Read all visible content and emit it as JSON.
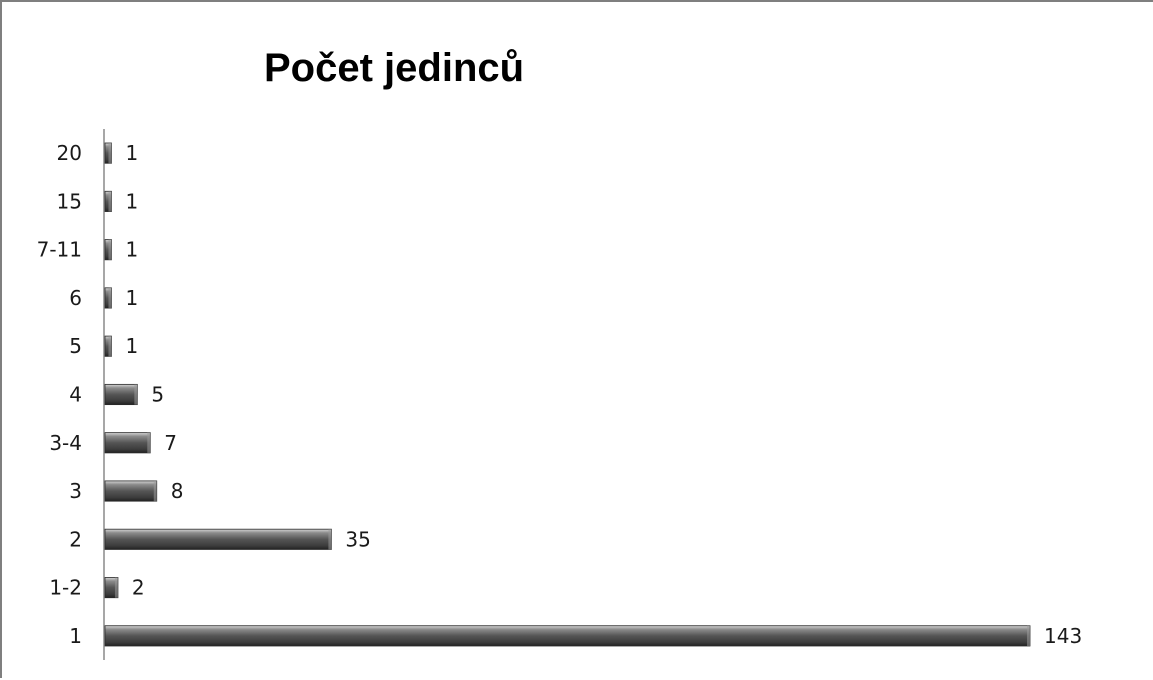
{
  "chart_data": {
    "type": "bar",
    "orientation": "horizontal",
    "title": "Počet jedinců",
    "xlabel": "",
    "ylabel": "",
    "categories": [
      "1",
      "1-2",
      "2",
      "3",
      "3-4",
      "4",
      "5",
      "6",
      "7-11",
      "15",
      "20"
    ],
    "values": [
      143,
      2,
      35,
      8,
      7,
      5,
      1,
      1,
      1,
      1,
      1
    ],
    "data_labels": true,
    "xlim": [
      0,
      143
    ],
    "grid": false,
    "legend": "none",
    "bar_color": "#5a5a5a"
  }
}
